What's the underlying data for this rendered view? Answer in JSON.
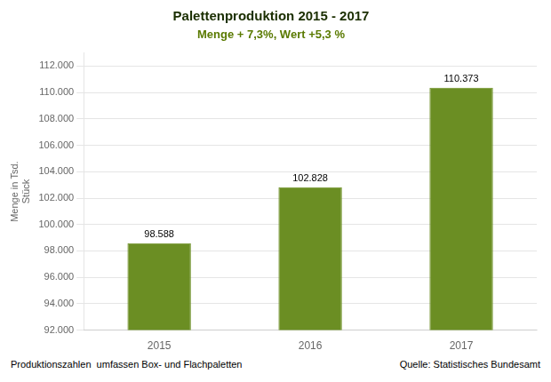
{
  "chart_data": {
    "type": "bar",
    "title": "Palettenproduktion 2015 - 2017",
    "subtitle": "Menge + 7,3%, Wert +5,3 %",
    "ylabel": [
      "Menge in Tsd.",
      "Stück"
    ],
    "annotations": [
      "Produktionszahlen  umfassen Box- und Flachpaletten",
      "Quelle: Statistisches Bundesamt"
    ],
    "categories": [
      "2015",
      "2016",
      "2017"
    ],
    "values": [
      98588,
      102828,
      110373
    ],
    "value_labels": [
      "98.588",
      "102.828",
      "110.373"
    ],
    "data_labels": true,
    "color": "#6b8e23",
    "ylim": [
      92000,
      113000
    ],
    "yticks": [
      {
        "value": 92000,
        "label": "92.000"
      },
      {
        "value": 94000,
        "label": "94.000"
      },
      {
        "value": 96000,
        "label": "96.000"
      },
      {
        "value": 98000,
        "label": "98.000"
      },
      {
        "value": 100000,
        "label": "100.000"
      },
      {
        "value": 102000,
        "label": "102.000"
      },
      {
        "value": 104000,
        "label": "104.000"
      },
      {
        "value": 106000,
        "label": "106.000"
      },
      {
        "value": 108000,
        "label": "108.000"
      },
      {
        "value": 110000,
        "label": "110.000"
      },
      {
        "value": 112000,
        "label": "112.000"
      }
    ],
    "grid": true
  }
}
